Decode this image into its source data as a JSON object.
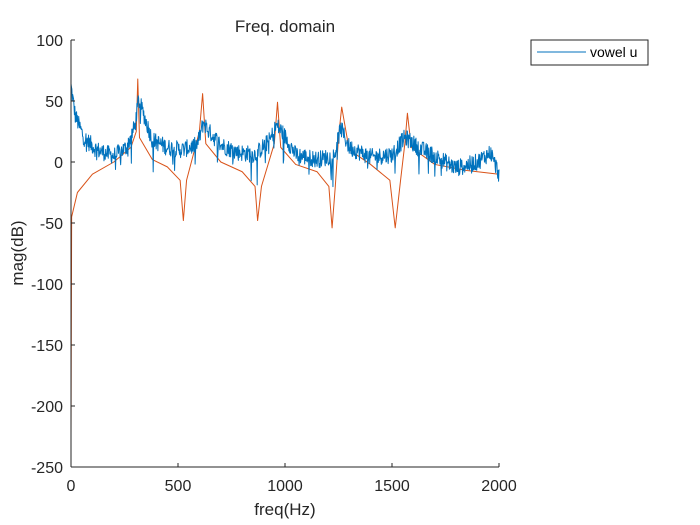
{
  "chart_data": {
    "type": "line",
    "title": "Freq. domain",
    "xlabel": "freq(Hz)",
    "ylabel": "mag(dB)",
    "xlim": [
      0,
      2000
    ],
    "ylim": [
      -250,
      100
    ],
    "x_ticks": [
      0,
      500,
      1000,
      1500,
      2000
    ],
    "y_ticks": [
      100,
      50,
      0,
      -50,
      -100,
      -150,
      -200,
      -250
    ],
    "x_tick_labels": [
      "0",
      "500",
      "1000",
      "1500",
      "2000"
    ],
    "y_tick_labels": [
      "100",
      "50",
      "0",
      "-50",
      "-100",
      "-150",
      "-200",
      "-250"
    ],
    "grid": false,
    "legend_position": "outside top-right",
    "series": [
      {
        "name": "vowel u",
        "color": "#0072bd",
        "description_points": {
          "x": [
            0,
            20,
            60,
            120,
            200,
            260,
            300,
            315,
            330,
            380,
            450,
            520,
            590,
            620,
            640,
            700,
            780,
            860,
            930,
            960,
            990,
            1050,
            1150,
            1230,
            1260,
            1300,
            1400,
            1500,
            1560,
            1580,
            1620,
            1700,
            1800,
            1900,
            1960,
            2000
          ],
          "y": [
            62,
            38,
            20,
            10,
            5,
            12,
            30,
            51,
            44,
            18,
            12,
            10,
            14,
            33,
            26,
            14,
            8,
            6,
            18,
            30,
            24,
            6,
            2,
            5,
            28,
            12,
            4,
            6,
            20,
            18,
            12,
            5,
            -5,
            0,
            8,
            -10
          ]
        }
      },
      {
        "name": "",
        "color": "#d95319",
        "description_points": {
          "x": [
            0,
            3,
            30,
            100,
            200,
            280,
            305,
            312,
            320,
            380,
            450,
            510,
            525,
            540,
            600,
            615,
            630,
            700,
            800,
            860,
            872,
            890,
            950,
            965,
            980,
            1050,
            1150,
            1205,
            1220,
            1235,
            1250,
            1265,
            1300,
            1400,
            1490,
            1515,
            1540,
            1560,
            1572,
            1590,
            1700,
            1850,
            2000
          ],
          "y": [
            -225,
            -45,
            -25,
            -10,
            0,
            12,
            25,
            68,
            20,
            2,
            -4,
            -15,
            -48,
            -15,
            25,
            56,
            15,
            0,
            -8,
            -20,
            -48,
            -20,
            15,
            49,
            12,
            -2,
            -8,
            -20,
            -54,
            -20,
            20,
            45,
            10,
            -2,
            -15,
            -54,
            -15,
            15,
            40,
            12,
            -2,
            -7,
            -10
          ]
        }
      }
    ],
    "legend": [
      "vowel u"
    ]
  },
  "colors": {
    "series_1": "#0072bd",
    "series_2": "#d95319",
    "axis": "#262626",
    "legend_border": "#262626"
  }
}
